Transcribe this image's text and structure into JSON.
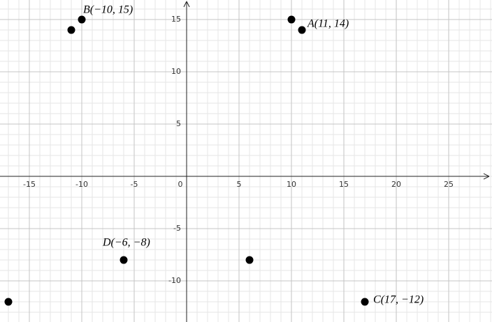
{
  "chart_data": {
    "type": "scatter",
    "x": [
      -10,
      -11,
      11,
      10,
      -6,
      6,
      17,
      -17
    ],
    "series": [
      {
        "color": "#000000",
        "values": [
          15,
          14,
          14,
          15,
          -8,
          -8,
          -12,
          -12
        ],
        "value_labels": [
          "B(−10, 15)",
          null,
          "A(11, 14)",
          null,
          "D(−6, −8)",
          null,
          "C(17, −12)",
          null
        ]
      }
    ],
    "xlim": [
      -17.8,
      29.13
    ],
    "ylim": [
      -13.93,
      16.87
    ],
    "xticks": [
      -15,
      -10,
      -5,
      0,
      5,
      10,
      15,
      20,
      25
    ],
    "yticks": [
      -10,
      -5,
      5,
      10,
      15
    ],
    "grid": true,
    "minor_grid": true
  }
}
